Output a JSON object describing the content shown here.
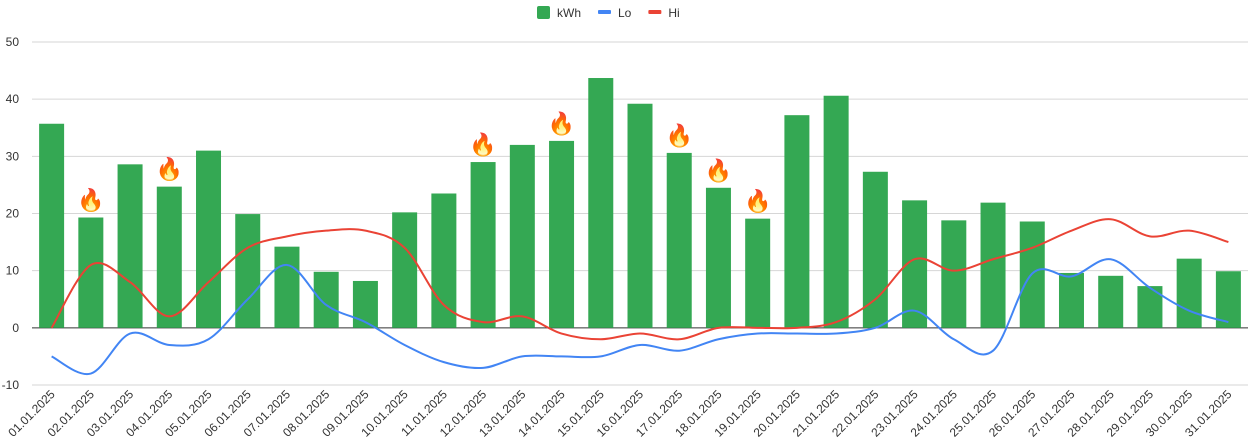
{
  "chart_data": {
    "type": "bar",
    "categories": [
      "01.01.2025",
      "02.01.2025",
      "03.01.2025",
      "04.01.2025",
      "05.01.2025",
      "06.01.2025",
      "07.01.2025",
      "08.01.2025",
      "09.01.2025",
      "10.01.2025",
      "11.01.2025",
      "12.01.2025",
      "13.01.2025",
      "14.01.2025",
      "15.01.2025",
      "16.01.2025",
      "17.01.2025",
      "18.01.2025",
      "19.01.2025",
      "20.01.2025",
      "21.01.2025",
      "22.01.2025",
      "23.01.2025",
      "24.01.2025",
      "25.01.2025",
      "26.01.2025",
      "27.01.2025",
      "28.01.2025",
      "29.01.2025",
      "30.01.2025",
      "31.01.2025"
    ],
    "series": [
      {
        "name": "kWh",
        "type": "bar",
        "color": "#34a853",
        "values": [
          35.7,
          19.3,
          28.6,
          24.7,
          31.0,
          19.9,
          14.2,
          9.8,
          8.2,
          20.2,
          23.5,
          29.0,
          32.0,
          32.7,
          43.7,
          39.2,
          30.6,
          24.5,
          19.1,
          37.2,
          40.6,
          27.3,
          22.3,
          18.8,
          21.9,
          18.6,
          9.6,
          9.1,
          7.3,
          12.1,
          9.9
        ]
      },
      {
        "name": "Lo",
        "type": "line",
        "color": "#4285f4",
        "values": [
          -5.0,
          -8.0,
          -1.0,
          -3.0,
          -2.0,
          5.0,
          11.0,
          4.0,
          1.0,
          -3.0,
          -6.0,
          -7.0,
          -5.0,
          -5.0,
          -5.0,
          -3.0,
          -4.0,
          -2.0,
          -1.0,
          -1.0,
          -1.0,
          0.0,
          3.0,
          -2.0,
          -4.0,
          9.5,
          9.0,
          12.0,
          7.0,
          3.0,
          1.0
        ]
      },
      {
        "name": "Hi",
        "type": "line",
        "color": "#ea4335",
        "values": [
          0.0,
          11.0,
          8.0,
          2.0,
          8.0,
          14.0,
          16.0,
          17.0,
          17.0,
          14.0,
          4.0,
          1.0,
          2.0,
          -1.0,
          -2.0,
          -1.0,
          -2.0,
          0.0,
          0.0,
          0.0,
          1.0,
          5.0,
          12.0,
          10.0,
          12.0,
          14.0,
          17.0,
          19.0,
          16.0,
          17.0,
          15.0
        ]
      }
    ],
    "heating_markers": [
      "02.01.2025",
      "04.01.2025",
      "12.01.2025",
      "14.01.2025",
      "17.01.2025",
      "18.01.2025",
      "19.01.2025"
    ],
    "marker_icon": "fire-icon",
    "marker_glyph": "🔥",
    "ylim": [
      -10,
      50
    ],
    "yticks": [
      "50",
      "40",
      "30",
      "20",
      "10",
      "0",
      "-10"
    ],
    "grid": true,
    "legend": "top-center",
    "title": "",
    "xlabel": "",
    "ylabel": ""
  }
}
